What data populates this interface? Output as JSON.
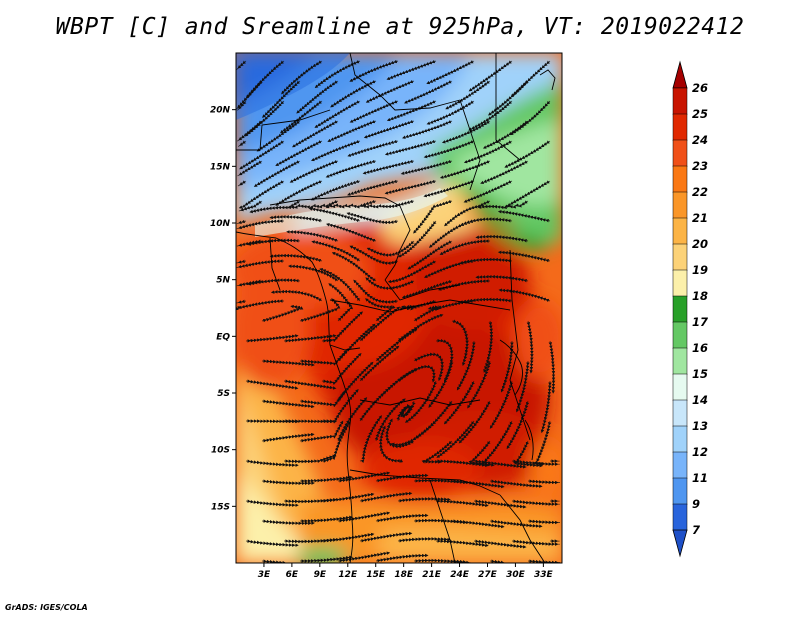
{
  "title": "WBPT [C] and Sreamline at 925hPa, VT: 2019022412",
  "footer": "GrADS: IGES/COLA",
  "chart_data": {
    "type": "heatmap",
    "variable": "WBPT [C]",
    "overlay": "streamlines",
    "level": "925hPa",
    "valid_time": "2019022412",
    "lon_range": [
      0,
      35
    ],
    "lat_range": [
      -20,
      25
    ],
    "x_ticks": [
      "3E",
      "6E",
      "9E",
      "12E",
      "15E",
      "18E",
      "21E",
      "24E",
      "27E",
      "30E",
      "33E"
    ],
    "x_tick_values": [
      3,
      6,
      9,
      12,
      15,
      18,
      21,
      24,
      27,
      30,
      33
    ],
    "y_ticks": [
      "20N",
      "15N",
      "10N",
      "5N",
      "EQ",
      "5S",
      "10S",
      "15S"
    ],
    "y_tick_values": [
      20,
      15,
      10,
      5,
      0,
      -5,
      -10,
      -15
    ],
    "colorbar": {
      "labels": [
        "26",
        "25",
        "24",
        "23",
        "22",
        "21",
        "20",
        "19",
        "18",
        "17",
        "16",
        "15",
        "14",
        "13",
        "12",
        "11",
        "9",
        "7"
      ],
      "colors": [
        "#a50000",
        "#c81400",
        "#e02800",
        "#f05018",
        "#fa7814",
        "#fa9628",
        "#fcb446",
        "#fcd278",
        "#fcf0aa",
        "#28a028",
        "#64c864",
        "#a0e6a0",
        "#e6faf0",
        "#c8e6fa",
        "#a0d2fa",
        "#78b4fa",
        "#4f96f0",
        "#2864dc",
        "#1e50c8"
      ],
      "extend": "both"
    },
    "regions": {
      "north": "12-16 C (blues) north of ~12N",
      "green_band": "16-18 C near 10-15N and 20-33E",
      "central": "21-25 C (reds/oranges) over central Africa",
      "southwest": "19-22 C (yellow/orange) toward the southwest"
    }
  }
}
